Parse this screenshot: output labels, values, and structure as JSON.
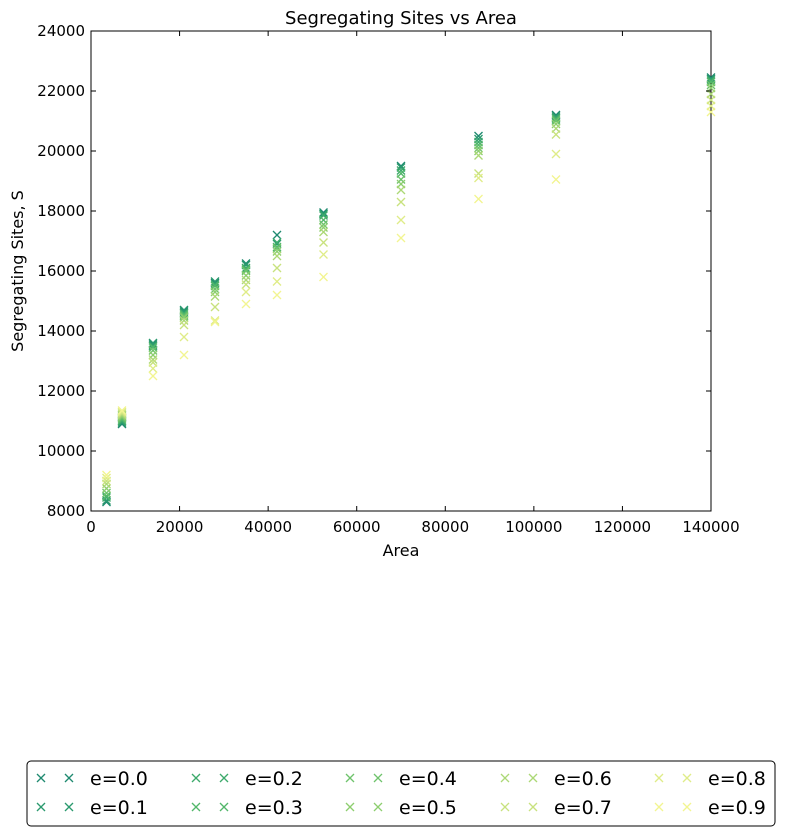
{
  "chart_data": {
    "type": "scatter",
    "title": "Segregating Sites vs Area",
    "xlabel": "Area",
    "ylabel": "Segregating Sites, S",
    "xlim": [
      0,
      140000
    ],
    "ylim": [
      8000,
      24000
    ],
    "xticks": [
      0,
      20000,
      40000,
      60000,
      80000,
      100000,
      120000,
      140000
    ],
    "yticks": [
      8000,
      10000,
      12000,
      14000,
      16000,
      18000,
      20000,
      22000,
      24000
    ],
    "marker": "x",
    "grid": false,
    "legend_position": "bottom",
    "x": [
      3500,
      7000,
      14000,
      21000,
      28000,
      35000,
      42000,
      52500,
      70000,
      87500,
      105000,
      140000
    ],
    "series": [
      {
        "name": "e=0.0",
        "color": "#1f8a70",
        "values": [
          8300,
          10900,
          13550,
          14650,
          15600,
          16250,
          17200,
          17950,
          19500,
          20500,
          21200,
          22450
        ]
      },
      {
        "name": "e=0.1",
        "color": "#2b9a6e",
        "values": [
          8350,
          10950,
          13600,
          14700,
          15650,
          16200,
          16900,
          17900,
          19450,
          20400,
          21150,
          22400
        ]
      },
      {
        "name": "e=0.2",
        "color": "#3daa6b",
        "values": [
          8450,
          11000,
          13500,
          14600,
          15550,
          16100,
          16950,
          17850,
          19350,
          20300,
          21100,
          22350
        ]
      },
      {
        "name": "e=0.3",
        "color": "#52b76a",
        "values": [
          8500,
          11050,
          13450,
          14550,
          15500,
          16050,
          16800,
          17700,
          19250,
          20200,
          21050,
          22300
        ]
      },
      {
        "name": "e=0.4",
        "color": "#6fc36c",
        "values": [
          8600,
          11100,
          13350,
          14500,
          15400,
          16000,
          16750,
          17550,
          19050,
          20100,
          21000,
          22200
        ]
      },
      {
        "name": "e=0.5",
        "color": "#8dce6f",
        "values": [
          8750,
          11150,
          13200,
          14450,
          15300,
          15850,
          16650,
          17450,
          18900,
          20000,
          20900,
          22100
        ]
      },
      {
        "name": "e=0.6",
        "color": "#acd876",
        "values": [
          8900,
          11200,
          13050,
          14350,
          15150,
          15700,
          16500,
          17300,
          18700,
          19850,
          20750,
          21900
        ]
      },
      {
        "name": "e=0.7",
        "color": "#c8e27e",
        "values": [
          9000,
          11250,
          12950,
          14200,
          14800,
          15550,
          16100,
          16950,
          18300,
          19250,
          20550,
          21700
        ]
      },
      {
        "name": "e=0.8",
        "color": "#dfec88",
        "values": [
          9100,
          11300,
          12750,
          13800,
          14350,
          15300,
          15650,
          16550,
          17700,
          19100,
          19900,
          21500
        ]
      },
      {
        "name": "e=0.9",
        "color": "#f2f591",
        "values": [
          9200,
          11350,
          12500,
          13200,
          14300,
          14900,
          15200,
          15800,
          17100,
          18400,
          19050,
          21300
        ]
      }
    ]
  }
}
